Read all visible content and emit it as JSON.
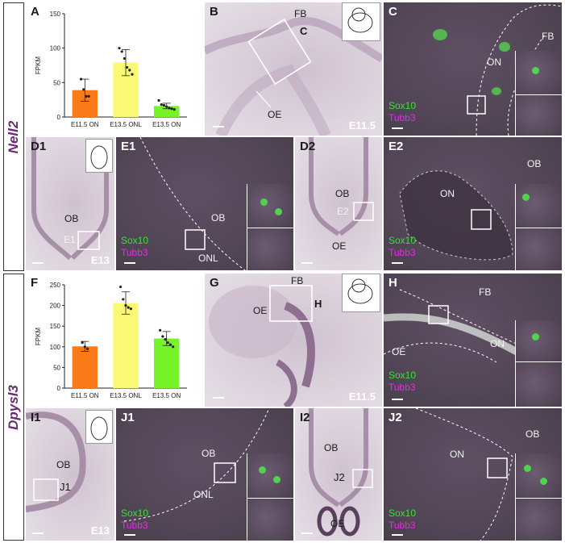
{
  "genes": {
    "top": "Nell2",
    "bottom": "Dpysl3"
  },
  "colors": {
    "e115": "#f97a17",
    "e135onl": "#faf874",
    "e135on": "#77f32a",
    "gene_label": "#6b2a74",
    "sox10": "#35e335",
    "tubb3": "#e32ee3"
  },
  "markers": {
    "sox10": "Sox10",
    "tubb3": "Tubb3"
  },
  "panels": {
    "A": "A",
    "B": "B",
    "C": "C",
    "D1": "D1",
    "E1": "E1",
    "D2": "D2",
    "E2": "E2",
    "F": "F",
    "G": "G",
    "H": "H",
    "I1": "I1",
    "J1": "J1",
    "I2": "I2",
    "J2": "J2"
  },
  "labels": {
    "fb": "FB",
    "oe": "OE",
    "on": "ON",
    "ob": "OB",
    "onl": "ONL",
    "c_box": "C",
    "e1_box": "E1",
    "e2_box": "E2",
    "h_box": "H",
    "j1_box": "J1",
    "j2_box": "J2"
  },
  "stages": {
    "e115": "E11.5",
    "e13": "E13"
  },
  "chart_data": [
    {
      "type": "bar",
      "panel": "A",
      "title": "",
      "xlabel": "",
      "ylabel": "FPKM",
      "ylim": [
        0,
        150
      ],
      "yticks": [
        "0",
        "50",
        "100",
        "150"
      ],
      "categories": [
        "E11.5 ON",
        "E13.5 ONL",
        "E13.5 ON"
      ],
      "values": [
        39,
        79,
        16
      ],
      "errors": [
        16,
        19,
        4
      ],
      "points": [
        [
          55,
          40,
          30,
          30
        ],
        [
          100,
          95,
          85,
          72,
          68,
          62
        ],
        [
          24,
          18,
          17,
          15,
          13,
          12,
          11
        ]
      ]
    },
    {
      "type": "bar",
      "panel": "F",
      "title": "",
      "xlabel": "",
      "ylabel": "FPKM",
      "ylim": [
        0,
        250
      ],
      "yticks": [
        "0",
        "50",
        "100",
        "150",
        "200",
        "250"
      ],
      "categories": [
        "E11.5 ON",
        "E13.5 ONL",
        "E13.5 ON"
      ],
      "values": [
        101,
        206,
        120
      ],
      "errors": [
        12,
        27,
        17
      ],
      "points": [
        [
          110,
          100,
          95
        ],
        [
          245,
          215,
          200,
          195,
          192
        ],
        [
          140,
          125,
          118,
          110,
          105,
          100
        ]
      ]
    }
  ]
}
